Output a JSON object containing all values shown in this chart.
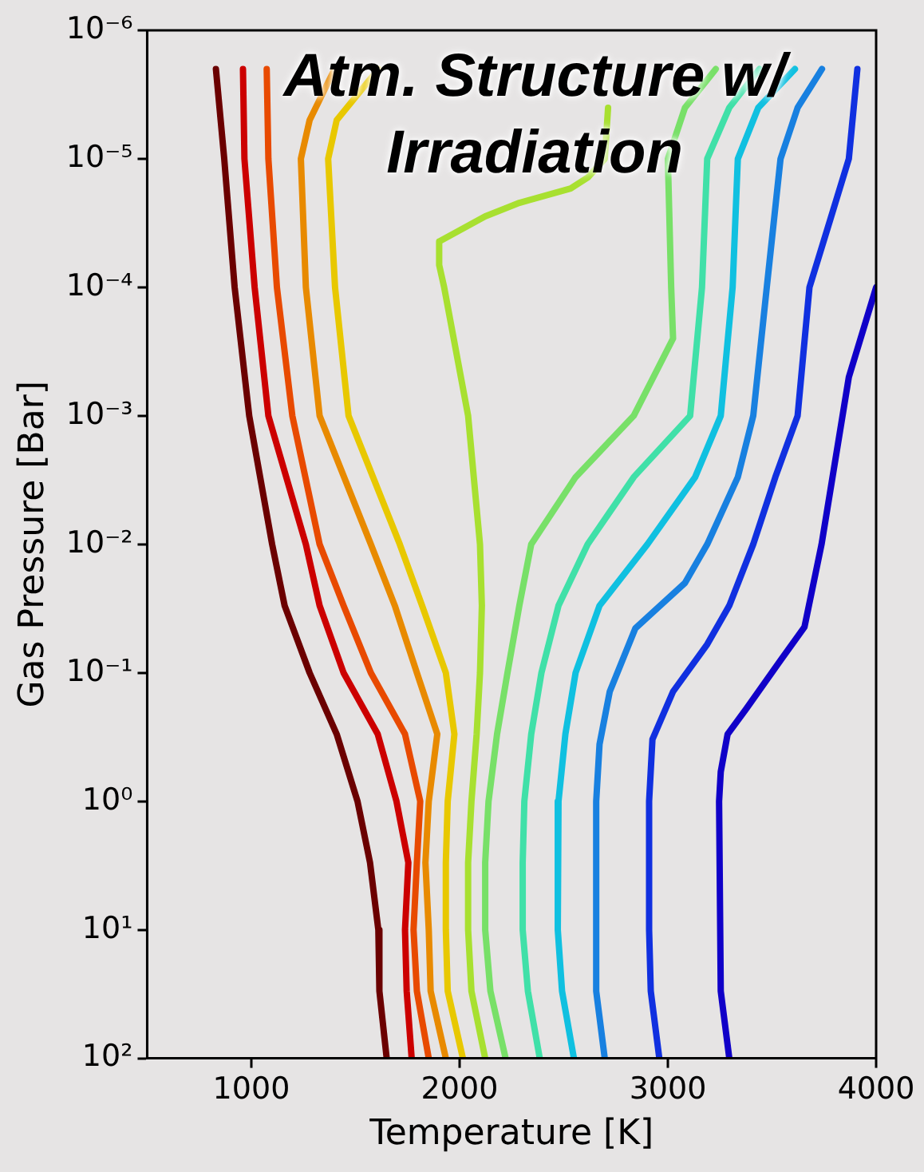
{
  "chart_data": {
    "type": "line",
    "title": "Atm. Structure w/ Irradiation",
    "xlabel": "Temperature [K]",
    "ylabel": "Gas Pressure [Bar]",
    "log": "y",
    "grid": false,
    "legend": false,
    "marker": "none",
    "xlim": [
      500,
      4000
    ],
    "xticks": [
      1000,
      2000,
      3000,
      4000
    ],
    "ylim": [
      100,
      1e-06
    ],
    "yticks": [
      {
        "value": 1e-06,
        "label": "10⁻⁶"
      },
      {
        "value": 1e-05,
        "label": "10⁻⁵"
      },
      {
        "value": 0.0001,
        "label": "10⁻⁴"
      },
      {
        "value": 0.001,
        "label": "10⁻³"
      },
      {
        "value": 0.01,
        "label": "10⁻²"
      },
      {
        "value": 0.1,
        "label": "10⁻¹"
      },
      {
        "value": 1,
        "label": "10⁰"
      },
      {
        "value": 10,
        "label": "10¹"
      },
      {
        "value": 100,
        "label": "10²"
      }
    ],
    "series": [
      {
        "color": "#6b0000",
        "x": [
          830,
          870,
          920,
          990,
          1100,
          1160,
          1280,
          1410,
          1510,
          1570,
          1610,
          1615,
          1650
        ],
        "values": [
          2e-06,
          1e-05,
          0.0001,
          0.001,
          0.01,
          0.03,
          0.1,
          0.3,
          1,
          3,
          10,
          30,
          100
        ]
      },
      {
        "color": "#cc0000",
        "x": [
          960,
          967,
          1016,
          1082,
          1262,
          1328,
          1443,
          1607,
          1697,
          1754,
          1738,
          1746,
          1770
        ],
        "values": [
          2e-06,
          1e-05,
          0.0001,
          0.001,
          0.01,
          0.03,
          0.1,
          0.3,
          1,
          3,
          10,
          30,
          100
        ]
      },
      {
        "color": "#e84a00",
        "x": [
          1074,
          1082,
          1123,
          1197,
          1328,
          1443,
          1574,
          1738,
          1811,
          1795,
          1779,
          1795,
          1852
        ],
        "values": [
          2e-06,
          1e-05,
          0.0001,
          0.001,
          0.01,
          0.03,
          0.1,
          0.3,
          1,
          3,
          10,
          30,
          100
        ]
      },
      {
        "color": "#e88a00",
        "x": [
          1400,
          1280,
          1238,
          1262,
          1328,
          1574,
          1689,
          1795,
          1893,
          1852,
          1836,
          1852,
          1861,
          1934
        ],
        "values": [
          2e-06,
          5e-06,
          1e-05,
          0.0001,
          0.001,
          0.01,
          0.03,
          0.1,
          0.3,
          1,
          3,
          10,
          30,
          100
        ]
      },
      {
        "color": "#e8c800",
        "x": [
          1610,
          1410,
          1369,
          1402,
          1467,
          1713,
          1820,
          1934,
          1975,
          1943,
          1934,
          1934,
          1943,
          2016
        ],
        "values": [
          2e-06,
          5e-06,
          1e-05,
          0.0001,
          0.001,
          0.01,
          0.03,
          0.1,
          0.3,
          1,
          3,
          10,
          30,
          100
        ]
      },
      {
        "color": "#a8e030",
        "x": [
          2713,
          2697,
          2615,
          2533,
          2287,
          2123,
          1902,
          1902,
          1926,
          2041,
          2098,
          2107,
          2098,
          2082,
          2057,
          2041,
          2041,
          2057,
          2123
        ],
        "values": [
          4e-06,
          1e-05,
          1.4e-05,
          1.7e-05,
          2.2e-05,
          2.8e-05,
          4.4e-05,
          6.7e-05,
          0.0001,
          0.001,
          0.01,
          0.03,
          0.1,
          0.3,
          1,
          3,
          10,
          30,
          100
        ]
      },
      {
        "color": "#78e068",
        "x": [
          3230,
          3082,
          3000,
          3016,
          3025,
          2836,
          2557,
          2344,
          2287,
          2230,
          2180,
          2139,
          2123,
          2123,
          2148,
          2221
        ],
        "values": [
          2e-06,
          4e-06,
          1e-05,
          0.0001,
          0.00025,
          0.001,
          0.003,
          0.01,
          0.03,
          0.1,
          0.3,
          1,
          3,
          10,
          30,
          100
        ]
      },
      {
        "color": "#40e0a8",
        "x": [
          3440,
          3295,
          3189,
          3164,
          3107,
          2836,
          2615,
          2475,
          2393,
          2344,
          2311,
          2303,
          2303,
          2328,
          2385
        ],
        "values": [
          2e-06,
          4e-06,
          1e-05,
          0.0001,
          0.001,
          0.003,
          0.01,
          0.03,
          0.1,
          0.3,
          1,
          3,
          10,
          30,
          100
        ]
      },
      {
        "color": "#10c0e0",
        "x": [
          3610,
          3434,
          3336,
          3311,
          3254,
          3131,
          2902,
          2672,
          2557,
          2508,
          2475,
          2468,
          2475,
          2492,
          2549
        ],
        "values": [
          2e-06,
          4e-06,
          1e-05,
          0.0001,
          0.001,
          0.003,
          0.01,
          0.03,
          0.1,
          0.3,
          1,
          3,
          10,
          30,
          100
        ]
      },
      {
        "color": "#1880e0",
        "x": [
          3740,
          3623,
          3541,
          3475,
          3410,
          3336,
          3189,
          3082,
          2844,
          2721,
          2672,
          2656,
          2656,
          2697
        ],
        "values": [
          2e-06,
          4e-06,
          1e-05,
          0.0001,
          0.001,
          0.003,
          0.01,
          0.02,
          0.045,
          0.14,
          0.36,
          1,
          30,
          100
        ]
      },
      {
        "color": "#1030e0",
        "x": [
          3910,
          3869,
          3779,
          3680,
          3623,
          3516,
          3410,
          3295,
          3189,
          3025,
          2926,
          2910,
          2910,
          2918,
          2959
        ],
        "values": [
          2e-06,
          1e-05,
          3e-05,
          0.0001,
          0.001,
          0.003,
          0.01,
          0.03,
          0.06,
          0.14,
          0.33,
          1,
          10,
          30,
          100
        ]
      },
      {
        "color": "#1000c8",
        "x": [
          4000,
          3869,
          3738,
          3656,
          3541,
          3377,
          3287,
          3254,
          3246,
          3254,
          3295
        ],
        "values": [
          0.0001,
          0.0005,
          0.01,
          0.044,
          0.08,
          0.19,
          0.3,
          0.59,
          1,
          30,
          100
        ]
      }
    ]
  }
}
